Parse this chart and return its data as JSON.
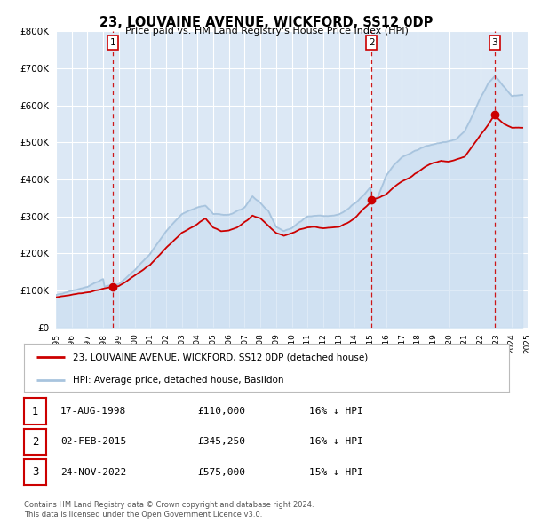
{
  "title": "23, LOUVAINE AVENUE, WICKFORD, SS12 0DP",
  "subtitle": "Price paid vs. HM Land Registry's House Price Index (HPI)",
  "xlim": [
    1995.0,
    2025.0
  ],
  "ylim": [
    0,
    800000
  ],
  "yticks": [
    0,
    100000,
    200000,
    300000,
    400000,
    500000,
    600000,
    700000,
    800000
  ],
  "ytick_labels": [
    "£0",
    "£100K",
    "£200K",
    "£300K",
    "£400K",
    "£500K",
    "£600K",
    "£700K",
    "£800K"
  ],
  "hpi_color": "#a8c4de",
  "hpi_fill_color": "#c8ddf0",
  "sale_color": "#cc0000",
  "vline_color": "#cc0000",
  "grid_color": "#ffffff",
  "plot_bg_color": "#dce8f5",
  "legend_label_sale": "23, LOUVAINE AVENUE, WICKFORD, SS12 0DP (detached house)",
  "legend_label_hpi": "HPI: Average price, detached house, Basildon",
  "transactions": [
    {
      "num": 1,
      "date": "17-AUG-1998",
      "year": 1998.62,
      "price": 110000,
      "pct": "16%",
      "dir": "↓"
    },
    {
      "num": 2,
      "date": "02-FEB-2015",
      "year": 2015.08,
      "price": 345250,
      "pct": "16%",
      "dir": "↓"
    },
    {
      "num": 3,
      "date": "24-NOV-2022",
      "year": 2022.89,
      "price": 575000,
      "pct": "15%",
      "dir": "↓"
    }
  ],
  "footer_line1": "Contains HM Land Registry data © Crown copyright and database right 2024.",
  "footer_line2": "This data is licensed under the Open Government Licence v3.0."
}
